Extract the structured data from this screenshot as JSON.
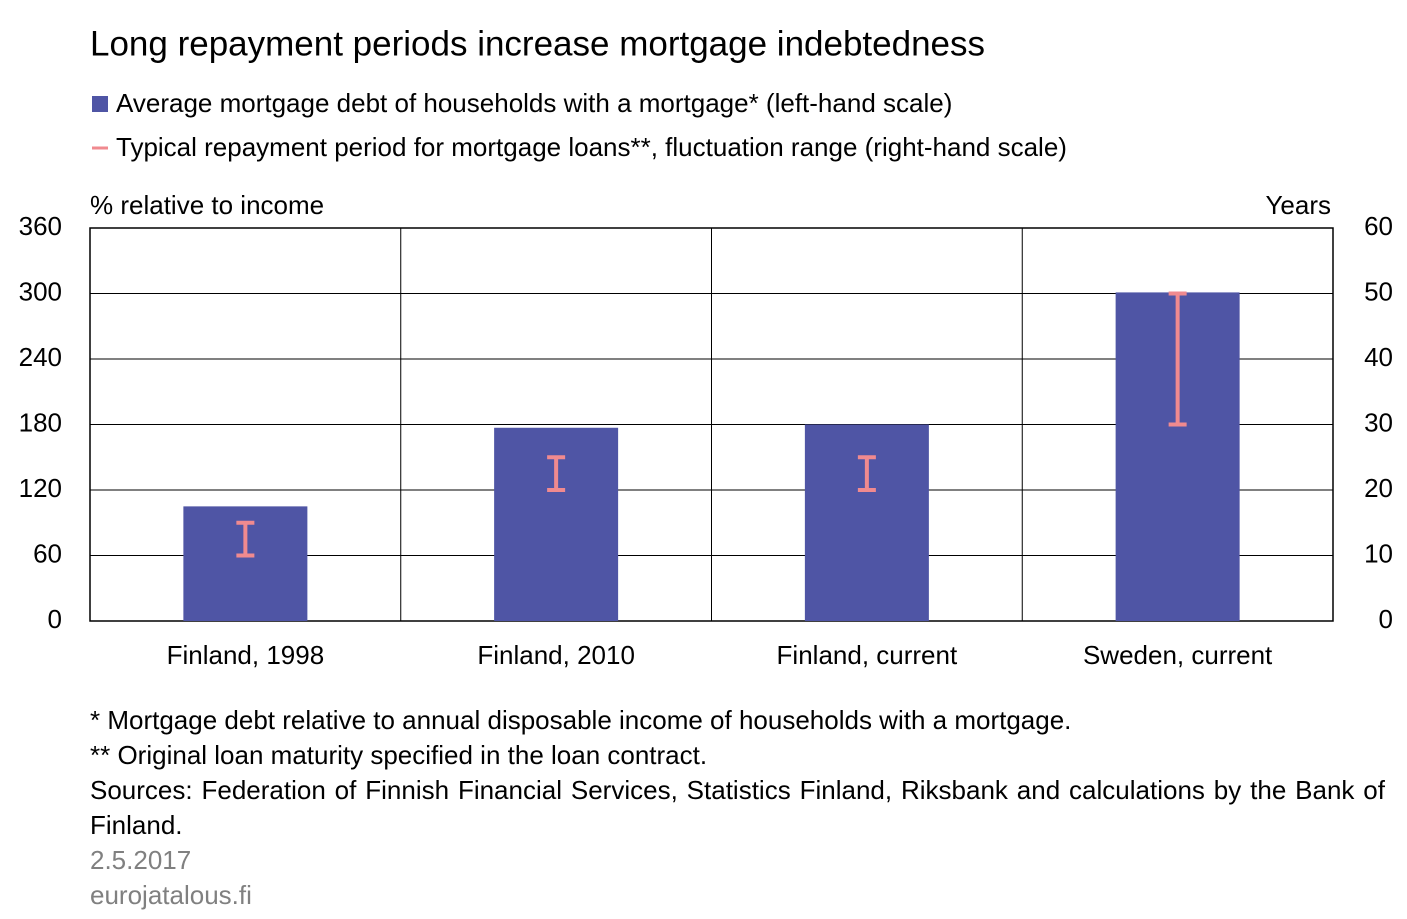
{
  "chart_data": {
    "type": "bar_range",
    "title": "Long repayment periods increase mortgage indebtedness",
    "y_label": "% relative to income",
    "y2_label": "Years",
    "categories": [
      "Finland, 1998",
      "Finland, 2010",
      "Finland, current",
      "Sweden, current"
    ],
    "series": [
      {
        "name": "Average mortgage debt of households with a mortgage* (left-hand scale)",
        "color": "#4f55a5",
        "values": [
          105,
          177,
          180,
          301
        ]
      },
      {
        "name": "Typical repayment period for mortgage loans**, fluctuation range (right-hand scale)",
        "color": "#f08a8f",
        "axis": "y2",
        "low": [
          10,
          20,
          20,
          30
        ],
        "high": [
          15,
          25,
          25,
          50
        ]
      }
    ],
    "ylim": [
      0,
      360
    ],
    "yticks": [
      0,
      60,
      120,
      180,
      240,
      300,
      360
    ],
    "y2lim": [
      0,
      60
    ],
    "y2ticks": [
      0,
      10,
      20,
      30,
      40,
      50,
      60
    ],
    "grid": true,
    "notes": [
      "* Mortgage debt relative to annual disposable income of households with a mortgage.",
      "** Original loan maturity specified in the loan contract.",
      "Sources: Federation of Finnish Financial Services, Statistics Finland, Riksbank and calculations by the Bank of Finland."
    ],
    "date": "2.5.2017",
    "source_site": "eurojatalous.fi"
  }
}
